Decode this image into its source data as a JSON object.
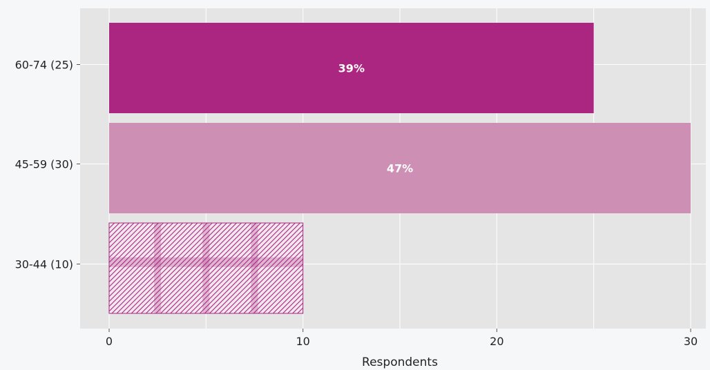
{
  "chart_data": {
    "type": "bar",
    "orientation": "horizontal",
    "categories": [
      "60-74 (25)",
      "45-59 (30)",
      "30-44 (10)"
    ],
    "values": [
      25,
      30,
      10
    ],
    "bar_labels": [
      "39%",
      "47%",
      ""
    ],
    "xlabel": "Respondents",
    "ylabel": "",
    "title": "",
    "xlim": [
      0,
      30
    ],
    "xticks": [
      0,
      10,
      20,
      30
    ],
    "grid": true,
    "colors": {
      "background": "#f6f7f9",
      "plot_background": "#e5e5e5",
      "grid": "#ffffff",
      "bar_60_74": "#ab2681",
      "bar_45_59": "#cd8fb4",
      "bar_30_44_hatch": "#a8267f"
    }
  }
}
